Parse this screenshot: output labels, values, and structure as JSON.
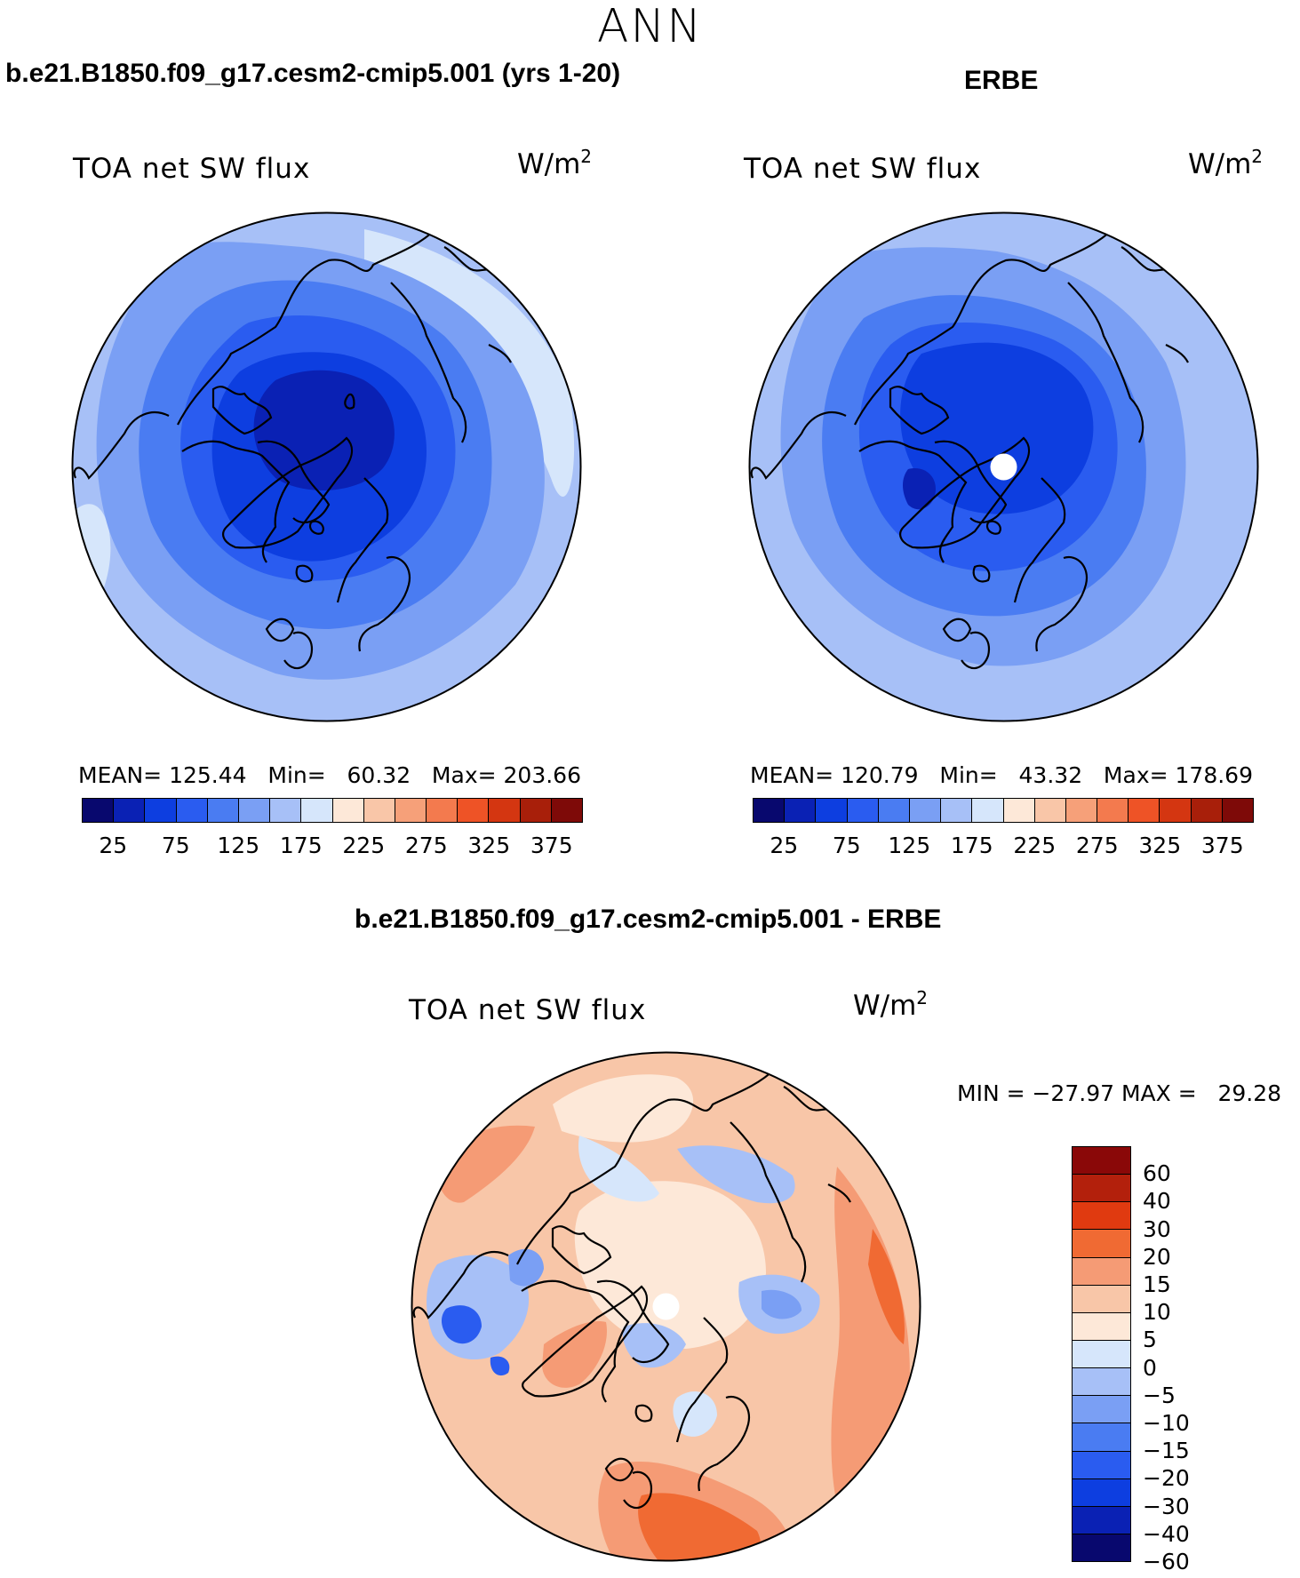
{
  "season": "ANN",
  "panels": {
    "model": {
      "title": "b.e21.B1850.f09_g17.cesm2-cmip5.001 (yrs 1-20)",
      "variable": "TOA net SW flux",
      "units_base": "W/m",
      "units_exp": "2",
      "stats": "MEAN= 125.44   Min=   60.32   Max= 203.66"
    },
    "obs": {
      "title": "ERBE",
      "variable": "TOA net SW flux",
      "units_base": "W/m",
      "units_exp": "2",
      "stats": "MEAN= 120.79   Min=   43.32   Max= 178.69"
    },
    "diff": {
      "title": "b.e21.B1850.f09_g17.cesm2-cmip5.001 - ERBE",
      "variable": "TOA net SW flux",
      "units_base": "W/m",
      "units_exp": "2",
      "stats": "MIN = −27.97 MAX =   29.28"
    }
  },
  "colorbars": {
    "abs": {
      "colors": [
        "#08086e",
        "#0a21b4",
        "#0d3ee0",
        "#2a5cf0",
        "#4a7cf2",
        "#7a9ff4",
        "#a7c0f7",
        "#d6e6fb",
        "#fde8d8",
        "#f9c6a8",
        "#f6a079",
        "#f37a4e",
        "#ee5326",
        "#d43611",
        "#a81f0a",
        "#7e0a08"
      ],
      "labels": [
        "25",
        "75",
        "125",
        "175",
        "225",
        "275",
        "325",
        "375"
      ]
    },
    "diff": {
      "colors": [
        "#8a0808",
        "#b3200c",
        "#e03a10",
        "#f06a33",
        "#f59b75",
        "#f8c6a8",
        "#fde8d8",
        "#d6e6fb",
        "#a7c0f7",
        "#7a9ff4",
        "#4a7cf2",
        "#2a5cf0",
        "#0d3ee0",
        "#0a21b4",
        "#08086e"
      ],
      "labels": [
        "60",
        "40",
        "30",
        "20",
        "15",
        "10",
        "5",
        "0",
        "−5",
        "−10",
        "−15",
        "−20",
        "−30",
        "−40",
        "−60"
      ]
    }
  },
  "map_colors": {
    "outer": "#a7c0f7",
    "ring1": "#7a9ff4",
    "ring2": "#4a7cf2",
    "ring3": "#2a5cf0",
    "ring4": "#0d3ee0",
    "core": "#0a21b4",
    "edge": "#d6e6fb",
    "pole": "#ffffff",
    "diff_base": "#f8c6a8",
    "diff_pale": "#fde8d8",
    "diff_warm": "#f59b75",
    "diff_hot": "#f06a33",
    "diff_light_blue": "#d6e6fb",
    "diff_blue": "#a7c0f7",
    "diff_mid_blue": "#7a9ff4",
    "diff_deep_blue": "#2a5cf0",
    "coast": "#000000"
  }
}
